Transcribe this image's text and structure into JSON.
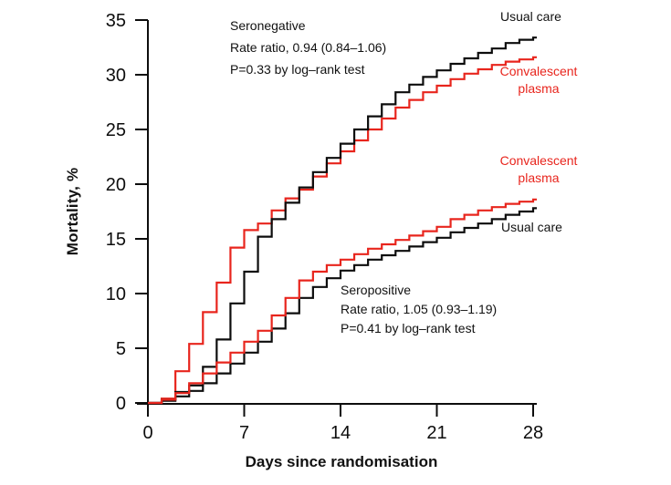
{
  "colors": {
    "usual_care": "#0d0d0d",
    "convalescent_plasma": "#e8251d",
    "axis": "#0d0d0d",
    "background": "#ffffff"
  },
  "chart_data": {
    "type": "line",
    "subtype": "step-after",
    "title": "",
    "xlabel": "Days since randomisation",
    "ylabel": "Mortality, %",
    "xlim": [
      0,
      28
    ],
    "ylim": [
      0,
      35
    ],
    "xticks": [
      0,
      7,
      14,
      21,
      28
    ],
    "yticks": [
      0,
      5,
      10,
      15,
      20,
      25,
      30,
      35
    ],
    "grid": false,
    "legend_position": "labels-on-curves",
    "x": [
      0,
      1,
      2,
      3,
      4,
      5,
      6,
      7,
      8,
      9,
      10,
      11,
      12,
      13,
      14,
      15,
      16,
      17,
      18,
      19,
      20,
      21,
      22,
      23,
      24,
      25,
      26,
      27,
      28
    ],
    "series": [
      {
        "id": "seronegative-convalescent-plasma",
        "name": "Seronegative – Convalescent plasma",
        "group": "Seronegative",
        "arm": "Convalescent plasma",
        "color_key": "convalescent_plasma",
        "values": [
          0,
          0.4,
          2.9,
          5.4,
          8.3,
          11.0,
          14.2,
          15.8,
          16.4,
          17.6,
          18.7,
          19.5,
          20.7,
          21.9,
          23.0,
          24.0,
          25.0,
          26.0,
          27.0,
          27.7,
          28.4,
          29.0,
          29.6,
          30.1,
          30.5,
          30.9,
          31.2,
          31.4,
          31.6
        ]
      },
      {
        "id": "seronegative-usual-care",
        "name": "Seronegative – Usual care",
        "group": "Seronegative",
        "arm": "Usual care",
        "color_key": "usual_care",
        "values": [
          0,
          0.3,
          1.0,
          1.6,
          3.3,
          5.8,
          9.1,
          12.0,
          15.2,
          16.8,
          18.3,
          19.7,
          21.1,
          22.4,
          23.7,
          25.0,
          26.2,
          27.3,
          28.4,
          29.1,
          29.8,
          30.4,
          31.0,
          31.5,
          32.0,
          32.4,
          32.9,
          33.2,
          33.4
        ]
      },
      {
        "id": "seropositive-usual-care",
        "name": "Seropositive – Usual care",
        "group": "Seropositive",
        "arm": "Usual care",
        "color_key": "usual_care",
        "values": [
          0,
          0.2,
          0.6,
          1.1,
          1.8,
          2.7,
          3.6,
          4.6,
          5.6,
          6.8,
          8.2,
          9.6,
          10.6,
          11.4,
          12.1,
          12.6,
          13.1,
          13.5,
          13.9,
          14.3,
          14.7,
          15.1,
          15.6,
          16.0,
          16.4,
          16.8,
          17.2,
          17.5,
          17.8
        ]
      },
      {
        "id": "seropositive-convalescent-plasma",
        "name": "Seropositive – Convalescent plasma",
        "group": "Seropositive",
        "arm": "Convalescent plasma",
        "color_key": "convalescent_plasma",
        "values": [
          0,
          0.3,
          0.9,
          1.8,
          2.7,
          3.7,
          4.6,
          5.6,
          6.6,
          8.0,
          9.6,
          11.2,
          12.0,
          12.6,
          13.1,
          13.6,
          14.1,
          14.5,
          14.9,
          15.3,
          15.7,
          16.1,
          16.8,
          17.2,
          17.6,
          17.9,
          18.2,
          18.4,
          18.6
        ]
      }
    ]
  },
  "annotations": {
    "seronegative": {
      "title": "Seronegative",
      "rate_ratio": "Rate ratio, 0.94 (0.84–1.06)",
      "p_value": "P=0.33 by log–rank test"
    },
    "seropositive": {
      "title": "Seropositive",
      "rate_ratio": "Rate ratio, 1.05 (0.93–1.19)",
      "p_value": "P=0.41 by log–rank test"
    }
  },
  "curve_labels": {
    "seronegative_usual_care": "Usual care",
    "seronegative_convalescent_plasma": "Convalescent plasma",
    "seropositive_convalescent_plasma": "Convalescent plasma",
    "seropositive_usual_care": "Usual care"
  }
}
